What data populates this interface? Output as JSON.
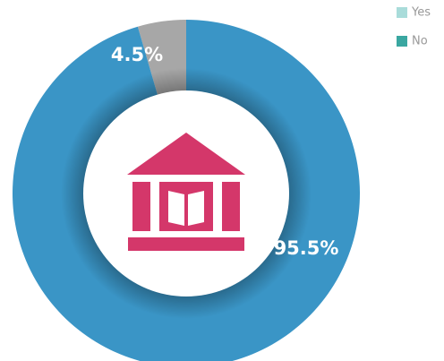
{
  "chart_data": {
    "type": "donut",
    "series": [
      {
        "name": "Yes",
        "values": [
          4.5
        ],
        "value_labels": [
          "4.5%"
        ],
        "color": "#a7a7a7",
        "legend_color": "#a9dcda"
      },
      {
        "name": "No",
        "values": [
          95.5
        ],
        "value_labels": [
          "95.5%"
        ],
        "color": "#3a95c6",
        "legend_color": "#3aa7a1"
      }
    ],
    "direction": "counterclockwise",
    "legend": "top-right"
  }
}
